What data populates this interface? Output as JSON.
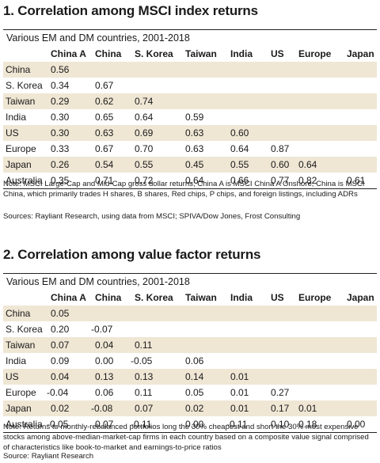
{
  "section1": {
    "title": "1. Correlation among MSCI index returns",
    "subtitle": "Various EM and DM countries, 2001-2018",
    "columns": [
      "China A",
      "China",
      "S. Korea",
      "Taiwan",
      "India",
      "US",
      "Europe",
      "Japan"
    ],
    "rows": [
      {
        "label": "China",
        "values": [
          "0.56",
          "",
          "",
          "",
          "",
          "",
          "",
          ""
        ]
      },
      {
        "label": "S. Korea",
        "values": [
          "0.34",
          "0.67",
          "",
          "",
          "",
          "",
          "",
          ""
        ]
      },
      {
        "label": "Taiwan",
        "values": [
          "0.29",
          "0.62",
          "0.74",
          "",
          "",
          "",
          "",
          ""
        ]
      },
      {
        "label": "India",
        "values": [
          "0.30",
          "0.65",
          "0.64",
          "0.59",
          "",
          "",
          "",
          ""
        ]
      },
      {
        "label": "US",
        "values": [
          "0.30",
          "0.63",
          "0.69",
          "0.63",
          "0.60",
          "",
          "",
          ""
        ]
      },
      {
        "label": "Europe",
        "values": [
          "0.33",
          "0.67",
          "0.70",
          "0.63",
          "0.64",
          "0.87",
          "",
          ""
        ]
      },
      {
        "label": "Japan",
        "values": [
          "0.26",
          "0.54",
          "0.55",
          "0.45",
          "0.55",
          "0.60",
          "0.64",
          ""
        ]
      },
      {
        "label": "Australia",
        "values": [
          "0.35",
          "0.71",
          "0.72",
          "0.64",
          "0.66",
          "0.77",
          "0.82",
          "0.61"
        ]
      }
    ],
    "note": "Note: MSCI Large-Cap and Mid-Cap gross dollar returns; China A is MSCI China A Onshore; China is MSCI China, which primarily trades H shares, B shares, Red chips, P chips, and foreign listings, including ADRs",
    "source": "Sources: Rayliant Research, using data from MSCI; SPIVA/Dow Jones, Frost Consulting"
  },
  "section2": {
    "title": "2. Correlation among value factor returns",
    "subtitle": "Various EM and DM countries, 2001-2018",
    "columns": [
      "China A",
      "China",
      "S. Korea",
      "Taiwan",
      "India",
      "US",
      "Europe",
      "Japan"
    ],
    "rows": [
      {
        "label": "China",
        "values": [
          "0.05",
          "",
          "",
          "",
          "",
          "",
          "",
          ""
        ]
      },
      {
        "label": "S. Korea",
        "values": [
          "0.20",
          "-0.07",
          "",
          "",
          "",
          "",
          "",
          ""
        ]
      },
      {
        "label": "Taiwan",
        "values": [
          "0.07",
          "0.04",
          "0.11",
          "",
          "",
          "",
          "",
          ""
        ]
      },
      {
        "label": "India",
        "values": [
          "0.09",
          "0.00",
          "-0.05",
          "0.06",
          "",
          "",
          "",
          ""
        ]
      },
      {
        "label": "US",
        "values": [
          "0.04",
          "0.13",
          "0.13",
          "0.14",
          "0.01",
          "",
          "",
          ""
        ]
      },
      {
        "label": "Europe",
        "values": [
          "-0.04",
          "0.06",
          "0.11",
          "0.05",
          "0.01",
          "0.27",
          "",
          ""
        ]
      },
      {
        "label": "Japan",
        "values": [
          "0.02",
          "-0.08",
          "0.07",
          "0.02",
          "0.01",
          "0.17",
          "0.01",
          ""
        ]
      },
      {
        "label": "Australia",
        "values": [
          "-0.05",
          "0.07",
          "-0.11",
          "0.00",
          "-0.11",
          "0.10",
          "0.18",
          "0.00"
        ]
      }
    ],
    "note": "Note: Returns to monthly-rebalanced portfolios long the 30% cheapest and short the 30% most expensive stocks among above-median-market-cap firms in each country based on a composite value signal comprised of characteristics like book-to-market and earnings-to-price ratios",
    "source": "Source: Rayliant Research"
  },
  "colors": {
    "row_shade": "#efe6d4",
    "rule": "#222222",
    "text": "#1a1a1a"
  }
}
